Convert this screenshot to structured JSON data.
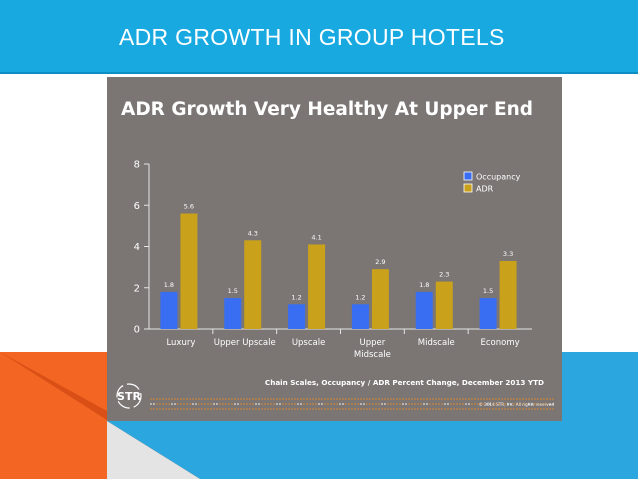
{
  "header": {
    "title": "ADR GROWTH IN GROUP HOTELS"
  },
  "slide": {
    "caption": "Chain Scales, Occupancy / ADR Percent Change, December 2013 YTD",
    "copyright": "© 2014 STR, Inc. All rights reserved",
    "logo_text": "STR"
  },
  "colors": {
    "header_bg": "#18a9e1",
    "slide_bg": "#7b7574",
    "occupancy": "#3a6ef2",
    "adr": "#c9a11a",
    "accent_orange": "#f26522",
    "accent_blue": "#2ba6de"
  },
  "chart_data": {
    "type": "bar",
    "title": "ADR Growth Very Healthy At Upper End",
    "categories": [
      "Luxury",
      "Upper Upscale",
      "Upscale",
      "Upper Midscale",
      "Midscale",
      "Economy"
    ],
    "series": [
      {
        "name": "Occupancy",
        "values": [
          1.8,
          1.5,
          1.2,
          1.2,
          1.8,
          1.5
        ],
        "color": "#3a6ef2"
      },
      {
        "name": "ADR",
        "values": [
          5.6,
          4.3,
          4.1,
          2.9,
          2.3,
          3.3
        ],
        "color": "#c9a11a"
      }
    ],
    "yticks": [
      0,
      2,
      4,
      6,
      8
    ],
    "ylim": [
      0,
      8
    ],
    "xlabel": "",
    "ylabel": "",
    "legend": "top-right",
    "grid": false
  }
}
